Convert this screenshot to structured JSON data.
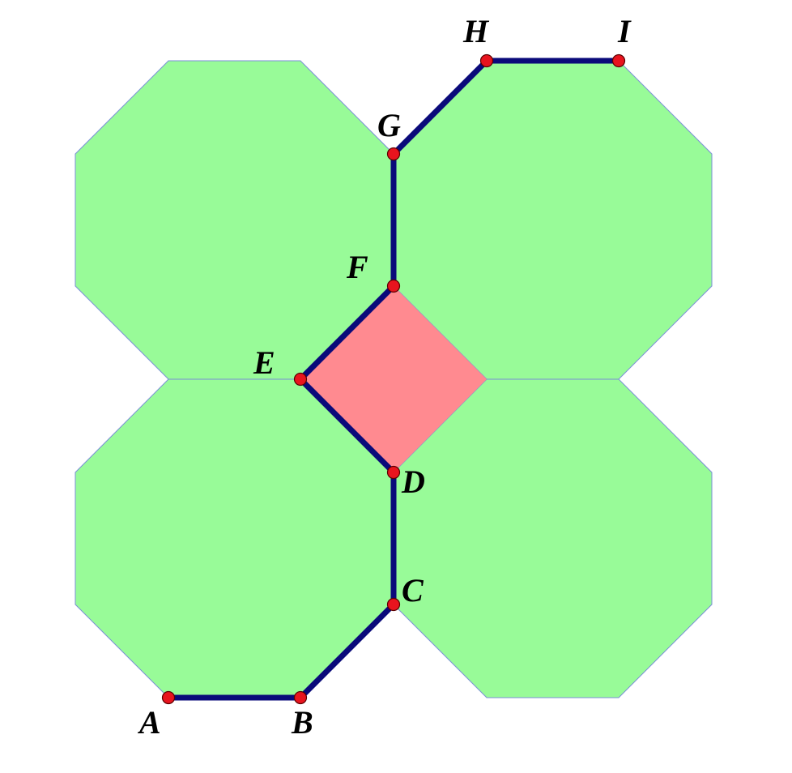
{
  "colors": {
    "octagon_fill": "#98fb98",
    "square_fill": "#ff8a90",
    "path_stroke": "#0a0a7a",
    "vertex_fill": "#e8141e"
  },
  "shapes": {
    "octagons": [
      {
        "id": "top-left"
      },
      {
        "id": "top-right"
      },
      {
        "id": "bottom-left"
      },
      {
        "id": "bottom-right"
      }
    ],
    "square": {
      "id": "center-square"
    }
  },
  "path": {
    "points": [
      "A",
      "B",
      "C",
      "D",
      "E",
      "F",
      "G",
      "H",
      "I"
    ]
  },
  "labels": {
    "A": "A",
    "B": "B",
    "C": "C",
    "D": "D",
    "E": "E",
    "F": "F",
    "G": "G",
    "H": "H",
    "I": "I"
  }
}
